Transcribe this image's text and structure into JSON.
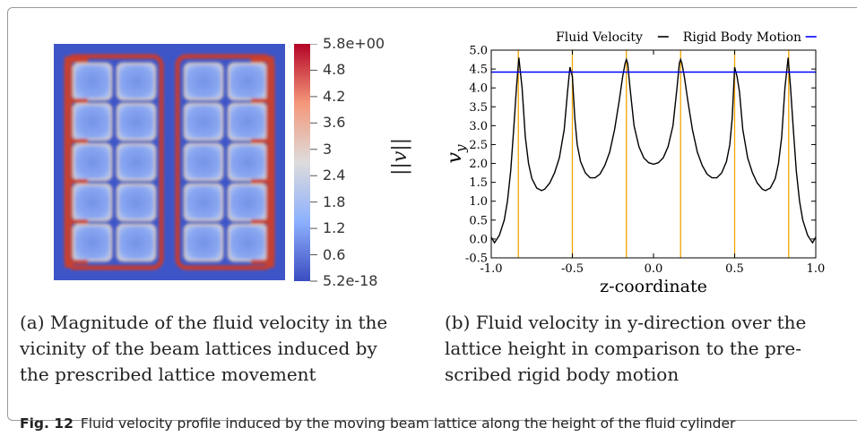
{
  "panel_a": {
    "colorbar": {
      "title": "||v||",
      "ticks": [
        "5.8e+00",
        "4.8",
        "4.2",
        "3.6",
        "3",
        "2.4",
        "1.8",
        "1.2",
        "0.6",
        "5.2e-18"
      ],
      "colors": [
        "#b40426",
        "#f4987a",
        "#dddcdc",
        "#8db0fe",
        "#3b4cc0"
      ]
    },
    "caption": [
      "(a) Magnitude of the fluid velocity in the",
      "vicinity of the beam lattices induced by",
      "the prescribed lattice movement"
    ]
  },
  "panel_b": {
    "caption": [
      "(b) Fluid velocity in y-direction over the",
      "lattice height in comparison to the pre-",
      "scribed rigid body motion"
    ]
  },
  "figure_caption": {
    "label": "Fig. 12",
    "text": "Fluid velocity profile induced by the moving beam lattice along the height of the fluid cylinder"
  },
  "chart_data": {
    "type": "line",
    "xlabel": "z-coordinate",
    "ylabel": "v_y",
    "xlim": [
      -1.0,
      1.0
    ],
    "ylim": [
      -0.5,
      5.0
    ],
    "xticks": [
      "-1.0",
      "-0.5",
      "0.0",
      "0.5",
      "1.0"
    ],
    "yticks": [
      "-0.5",
      "0.0",
      "0.5",
      "1.0",
      "1.5",
      "2.0",
      "2.5",
      "3.0",
      "3.5",
      "4.0",
      "4.5",
      "5.0"
    ],
    "legend_position": "top",
    "series": [
      {
        "name": "Fluid Velocity",
        "color": "#000000",
        "x": [
          -1.0,
          -0.98,
          -0.95,
          -0.92,
          -0.9,
          -0.88,
          -0.86,
          -0.845,
          -0.83,
          -0.81,
          -0.79,
          -0.77,
          -0.75,
          -0.72,
          -0.69,
          -0.67,
          -0.64,
          -0.61,
          -0.58,
          -0.55,
          -0.53,
          -0.515,
          -0.5,
          -0.485,
          -0.47,
          -0.45,
          -0.42,
          -0.39,
          -0.36,
          -0.33,
          -0.3,
          -0.27,
          -0.24,
          -0.21,
          -0.19,
          -0.175,
          -0.167,
          -0.159,
          -0.145,
          -0.12,
          -0.09,
          -0.06,
          -0.03,
          0.0,
          0.03,
          0.06,
          0.09,
          0.12,
          0.145,
          0.159,
          0.167,
          0.175,
          0.19,
          0.21,
          0.24,
          0.27,
          0.3,
          0.33,
          0.36,
          0.39,
          0.42,
          0.45,
          0.47,
          0.485,
          0.5,
          0.515,
          0.53,
          0.55,
          0.58,
          0.61,
          0.64,
          0.67,
          0.69,
          0.72,
          0.75,
          0.77,
          0.79,
          0.81,
          0.83,
          0.845,
          0.86,
          0.88,
          0.9,
          0.92,
          0.95,
          0.98,
          1.0
        ],
        "y": [
          0.05,
          -0.1,
          0.1,
          0.5,
          1.0,
          1.8,
          3.0,
          4.0,
          4.8,
          4.0,
          2.7,
          2.0,
          1.6,
          1.35,
          1.28,
          1.32,
          1.48,
          1.75,
          2.15,
          2.9,
          3.9,
          4.55,
          4.3,
          3.2,
          2.5,
          2.05,
          1.75,
          1.62,
          1.62,
          1.72,
          1.95,
          2.3,
          2.9,
          3.7,
          4.3,
          4.65,
          4.75,
          4.65,
          4.0,
          3.0,
          2.45,
          2.15,
          2.02,
          1.98,
          2.02,
          2.15,
          2.45,
          3.0,
          4.0,
          4.65,
          4.75,
          4.65,
          4.3,
          3.7,
          2.9,
          2.3,
          1.95,
          1.72,
          1.62,
          1.62,
          1.75,
          2.05,
          2.5,
          3.2,
          4.55,
          4.3,
          3.9,
          2.9,
          2.15,
          1.75,
          1.48,
          1.32,
          1.28,
          1.35,
          1.6,
          2.0,
          2.7,
          4.0,
          4.8,
          4.0,
          3.0,
          1.8,
          1.0,
          0.5,
          0.1,
          -0.1,
          0.05
        ]
      },
      {
        "name": "Rigid Body Motion",
        "color": "#0000ff",
        "x": [
          -1.0,
          1.0
        ],
        "y": [
          4.42,
          4.42
        ]
      }
    ],
    "vertical_lines": {
      "color": "#f0a500",
      "x": [
        -0.833,
        -0.5,
        -0.167,
        0.167,
        0.5,
        0.833
      ]
    }
  }
}
